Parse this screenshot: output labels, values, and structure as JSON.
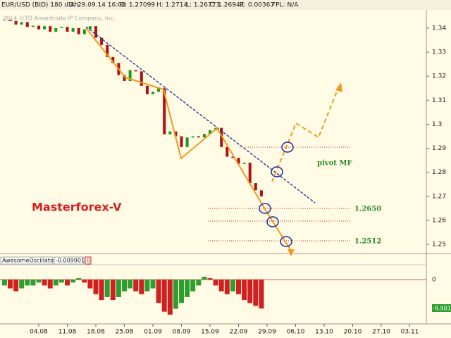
{
  "toolbar": {
    "symbol": "EUR/USD (BID) 180 d 4h",
    "date": "D: 29.09.14 16:00",
    "open": "O: 1.27099",
    "high": "H: 1.2714",
    "low": "L: 1.26773",
    "close": "C: 1.26947",
    "range": "R: 0.00367",
    "fpl": "FPL: N/A"
  },
  "watermark": "2014 ©TD Ameritrade IP Company, Inc.",
  "chart_data": [
    {
      "type": "candlestick",
      "title": "Masterforex-V",
      "annotations": {
        "pivot": "pivot MF",
        "level_1": "1.2650",
        "level_2": "1.2512"
      },
      "x": [
        -6,
        -5,
        -4,
        -3,
        -2,
        -1,
        0,
        1,
        2,
        3,
        4,
        5,
        6,
        7,
        8,
        9,
        10,
        11,
        12,
        13,
        14,
        15,
        16,
        17,
        18,
        19,
        20,
        21,
        22,
        23,
        24,
        25,
        26,
        27,
        28,
        29,
        30,
        31,
        32,
        33,
        34,
        35,
        36,
        37,
        38,
        39
      ],
      "close": [
        1.3435,
        1.343,
        1.3415,
        1.3425,
        1.3405,
        1.341,
        1.3395,
        1.3408,
        1.3385,
        1.34,
        1.3405,
        1.3385,
        1.34,
        1.3375,
        1.3395,
        1.3408,
        1.336,
        1.333,
        1.328,
        1.3255,
        1.3205,
        1.318,
        1.3225,
        1.322,
        1.316,
        1.3125,
        1.3135,
        1.315,
        1.2958,
        1.297,
        1.295,
        1.2905,
        1.2945,
        1.295,
        1.2945,
        1.296,
        1.2975,
        1.2985,
        1.2905,
        1.2865,
        1.286,
        1.2835,
        1.284,
        1.2755,
        1.2725,
        1.27
      ],
      "up_color": "#1a9a1a",
      "down_color": "#b01010",
      "xlim": [
        -6.79,
        67.9
      ],
      "ylim": [
        1.2468,
        1.3476
      ],
      "yticks": [
        1.34,
        1.33,
        1.32,
        1.31,
        1.3,
        1.29,
        1.28,
        1.27,
        1.26,
        1.25
      ]
    },
    {
      "type": "bar",
      "title": "AwesomeOscillator",
      "badge": "0",
      "last_label": "-9.9017",
      "x": [
        -6,
        -5,
        -4,
        -3,
        -2,
        -1,
        0,
        1,
        2,
        3,
        4,
        5,
        6,
        7,
        8,
        9,
        10,
        11,
        12,
        13,
        14,
        15,
        16,
        17,
        18,
        19,
        20,
        21,
        22,
        23,
        24,
        25,
        26,
        27,
        28,
        29,
        30,
        31,
        32,
        33,
        34,
        35,
        36,
        37,
        38,
        39
      ],
      "values": [
        -0.002,
        -0.003,
        -0.004,
        -0.003,
        -0.002,
        -0.002,
        -0.001,
        -0.002,
        -0.003,
        -0.002,
        -0.001,
        -0.002,
        -0.001,
        0.0005,
        -0.001,
        -0.003,
        -0.005,
        -0.007,
        -0.006,
        -0.007,
        -0.006,
        -0.004,
        -0.003,
        -0.004,
        -0.005,
        -0.004,
        -0.003,
        -0.008,
        -0.011,
        -0.012,
        -0.01,
        -0.008,
        -0.006,
        -0.004,
        -0.002,
        0.001,
        0.0005,
        -0.002,
        -0.004,
        -0.005,
        -0.004,
        -0.005,
        -0.007,
        -0.008,
        -0.009,
        -0.0099017
      ],
      "up_color": "#2e9e2e",
      "down_color": "#d02020",
      "xlim": [
        -6.79,
        67.9
      ],
      "ylim": [
        -0.0147,
        0.0051
      ],
      "yticks": [
        0
      ],
      "xticks": [
        {
          "value": 0,
          "label": "04.08"
        },
        {
          "value": 5,
          "label": "11.08"
        },
        {
          "value": 10,
          "label": "18.08"
        },
        {
          "value": 15,
          "label": "25.08"
        },
        {
          "value": 20,
          "label": "01.09"
        },
        {
          "value": 25,
          "label": "08.09"
        },
        {
          "value": 30,
          "label": "15.09"
        },
        {
          "value": 35,
          "label": "22.09"
        },
        {
          "value": 40,
          "label": "29.09"
        },
        {
          "value": 45,
          "label": "06.10"
        },
        {
          "value": 50,
          "label": "13.10"
        },
        {
          "value": 55,
          "label": "20.10"
        },
        {
          "value": 60,
          "label": "27.10"
        },
        {
          "value": 65,
          "label": "03.11"
        }
      ]
    }
  ]
}
